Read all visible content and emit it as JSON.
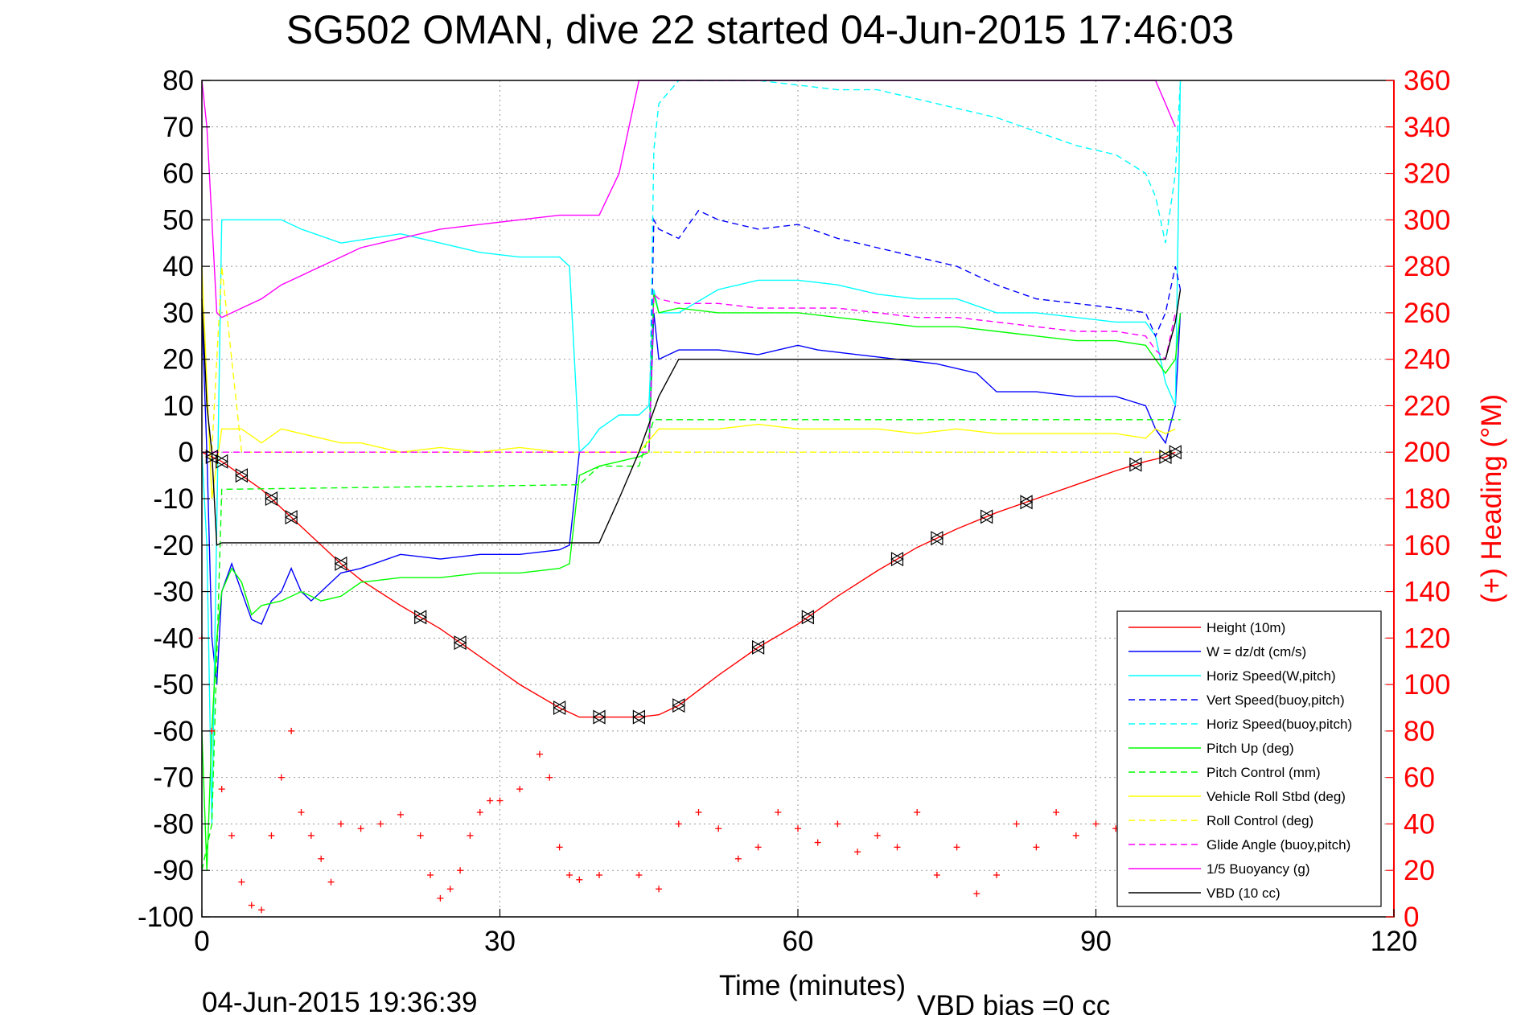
{
  "chart_data": {
    "type": "line",
    "title": "SG502 OMAN, dive 22 started 04-Jun-2015 17:46:03",
    "xlabel": "Time (minutes)",
    "ylabel_right": "(+) Heading (°M)",
    "footer_left": "04-Jun-2015 19:36:39",
    "footer_right": "VBD bias =0 cc",
    "xlim": [
      0,
      120
    ],
    "ylim": [
      -100,
      80
    ],
    "ylim_right": [
      0,
      360
    ],
    "xticks": [
      "0",
      "30",
      "60",
      "90",
      "120"
    ],
    "yticks_left": [
      "80",
      "70",
      "60",
      "50",
      "40",
      "30",
      "20",
      "10",
      "0",
      "-10",
      "-20",
      "-30",
      "-40",
      "-50",
      "-60",
      "-70",
      "-80",
      "-90",
      "-100"
    ],
    "yticks_right": [
      "360",
      "340",
      "320",
      "300",
      "280",
      "260",
      "240",
      "220",
      "200",
      "180",
      "160",
      "140",
      "120",
      "100",
      "80",
      "60",
      "40",
      "20",
      "0"
    ],
    "grid": true,
    "legend_position": "bottom-right",
    "colors": {
      "height": "#ff0000",
      "w": "#0000ff",
      "horiz_speed_w": "#00ffff",
      "vert_speed_buoy": "#0000ff",
      "horiz_speed_buoy": "#00ffff",
      "pitch_up": "#00ff00",
      "pitch_control": "#00ff00",
      "vehicle_roll": "#ffff00",
      "roll_control": "#ffff00",
      "glide_angle": "#ff00ff",
      "buoyancy": "#ff00ff",
      "vbd": "#000000",
      "heading": "#ff0000"
    },
    "series": [
      {
        "key": "height",
        "name": "Height (10m)",
        "style": "solid",
        "color": "#ff0000",
        "x": [
          0,
          1,
          2,
          4,
          6,
          8,
          10,
          12,
          14,
          16,
          20,
          24,
          28,
          32,
          36,
          38,
          40,
          42,
          44,
          46,
          48,
          52,
          56,
          60,
          64,
          68,
          72,
          76,
          80,
          84,
          88,
          92,
          95,
          97,
          98
        ],
        "y": [
          0,
          -1,
          -2,
          -5,
          -8,
          -12,
          -16,
          -20,
          -24,
          -27.5,
          -33,
          -38,
          -44,
          -50,
          -55,
          -57,
          -57,
          -57,
          -57,
          -56.5,
          -54.5,
          -48,
          -42,
          -37,
          -31,
          -25.5,
          -20.5,
          -16.5,
          -13,
          -10,
          -7,
          -4,
          -2,
          -1,
          0
        ]
      },
      {
        "key": "w",
        "name": "W = dz/dt (cm/s)",
        "style": "solid",
        "color": "#0000ff",
        "x": [
          0,
          0.5,
          1,
          1.5,
          2,
          3,
          4,
          5,
          6,
          7,
          8,
          9,
          10,
          11,
          12,
          13,
          14,
          16,
          20,
          24,
          28,
          32,
          36,
          37,
          38,
          39,
          40,
          42,
          44,
          45,
          45.5,
          46,
          48,
          52,
          56,
          60,
          62,
          66,
          70,
          74,
          78,
          80,
          84,
          88,
          92,
          95,
          96,
          97,
          98,
          98.5
        ],
        "y": [
          30,
          0,
          -40,
          -50,
          -30,
          -24,
          -30,
          -36,
          -37,
          -32,
          -30,
          -25,
          -30,
          -32,
          -30,
          -28,
          -26,
          -25,
          -22,
          -23,
          -22,
          -22,
          -21,
          -20,
          0,
          0,
          0,
          0,
          0,
          0,
          30,
          20,
          22,
          22,
          21,
          23,
          22,
          21,
          20,
          19,
          17,
          13,
          13,
          12,
          12,
          10,
          5,
          2,
          10,
          30
        ]
      },
      {
        "key": "horiz_speed_w",
        "name": "Horiz Speed(W,pitch)",
        "style": "solid",
        "color": "#00ffff",
        "x": [
          0,
          0.5,
          1,
          2,
          4,
          6,
          8,
          10,
          14,
          20,
          24,
          28,
          32,
          36,
          37,
          38,
          39,
          40,
          42,
          44,
          45,
          45.5,
          46,
          48,
          52,
          56,
          60,
          64,
          68,
          72,
          76,
          80,
          84,
          88,
          92,
          95,
          96,
          97,
          98,
          98.5
        ],
        "y": [
          0,
          -20,
          -80,
          50,
          50,
          50,
          50,
          48,
          45,
          47,
          45,
          43,
          42,
          42,
          40,
          0,
          2,
          5,
          8,
          8,
          10,
          35,
          30,
          30,
          35,
          37,
          37,
          36,
          34,
          33,
          33,
          30,
          30,
          29,
          28,
          28,
          25,
          15,
          10,
          80
        ]
      },
      {
        "key": "vert_speed_buoy",
        "name": "Vert Speed(buoy,pitch)",
        "style": "dashed",
        "color": "#0000ff",
        "x": [
          44,
          45,
          45.5,
          46,
          48,
          50,
          52,
          56,
          60,
          64,
          68,
          72,
          76,
          80,
          84,
          88,
          92,
          95,
          96,
          97,
          98,
          98.5
        ],
        "y": [
          0,
          0,
          50,
          48,
          46,
          52,
          50,
          48,
          49,
          46,
          44,
          42,
          40,
          36,
          33,
          32,
          31,
          30,
          25,
          30,
          40,
          35
        ]
      },
      {
        "key": "horiz_speed_buoy",
        "name": "Horiz Speed(buoy,pitch)",
        "style": "dashed",
        "color": "#00ffff",
        "x": [
          44,
          45,
          45.5,
          46,
          48,
          52,
          56,
          60,
          64,
          68,
          72,
          76,
          80,
          84,
          88,
          92,
          95,
          96,
          97,
          98,
          98.5
        ],
        "y": [
          0,
          0,
          65,
          75,
          80,
          80,
          80,
          79,
          78,
          78,
          76,
          74,
          72,
          69,
          66,
          64,
          60,
          55,
          45,
          60,
          80
        ]
      },
      {
        "key": "pitch_up",
        "name": "Pitch Up (deg)",
        "style": "solid",
        "color": "#00ff00",
        "x": [
          0,
          0.5,
          1,
          1.5,
          2,
          3,
          4,
          5,
          6,
          8,
          10,
          12,
          14,
          16,
          20,
          24,
          28,
          32,
          36,
          37,
          38,
          40,
          42,
          44,
          45,
          45.5,
          46,
          48,
          52,
          56,
          60,
          64,
          68,
          72,
          76,
          80,
          84,
          88,
          92,
          95,
          96,
          97,
          98,
          98.5
        ],
        "y": [
          -60,
          -90,
          -60,
          -40,
          -30,
          -25,
          -28,
          -35,
          -33,
          -32,
          -30,
          -32,
          -31,
          -28,
          -27,
          -27,
          -26,
          -26,
          -25,
          -24,
          -5,
          -3,
          -2,
          -1,
          0,
          34,
          30,
          31,
          30,
          30,
          30,
          29,
          28,
          27,
          27,
          26,
          25,
          24,
          24,
          23,
          20,
          17,
          20,
          30
        ]
      },
      {
        "key": "pitch_control",
        "name": "Pitch Control (mm)",
        "style": "dashed",
        "color": "#00ff00",
        "x": [
          0,
          1,
          2,
          38,
          40,
          44,
          45.5,
          90,
          98,
          98.5
        ],
        "y": [
          -90,
          -80,
          -8,
          -7,
          -3,
          -3,
          7,
          7,
          7,
          7
        ]
      },
      {
        "key": "vehicle_roll",
        "name": "Vehicle Roll Stbd (deg)",
        "style": "solid",
        "color": "#ffff00",
        "x": [
          0,
          1,
          2,
          4,
          6,
          8,
          10,
          12,
          14,
          16,
          20,
          24,
          28,
          32,
          36,
          38,
          40,
          42,
          44,
          46,
          48,
          52,
          56,
          60,
          64,
          68,
          72,
          76,
          80,
          84,
          88,
          92,
          95,
          96,
          97,
          98
        ],
        "y": [
          40,
          -10,
          5,
          5,
          2,
          5,
          4,
          3,
          2,
          2,
          0,
          1,
          0,
          1,
          0,
          0,
          0,
          0,
          0,
          5,
          5,
          5,
          6,
          5,
          5,
          5,
          4,
          5,
          4,
          4,
          4,
          4,
          3,
          5,
          4,
          5
        ]
      },
      {
        "key": "roll_control",
        "name": "Roll Control (deg)",
        "style": "dashed",
        "color": "#ffff00",
        "x": [
          0,
          1,
          2,
          4,
          6,
          8,
          10,
          14,
          20,
          28,
          36,
          38,
          40,
          44,
          46,
          56,
          70,
          80,
          90,
          98
        ],
        "y": [
          0,
          0,
          40,
          0,
          0,
          0,
          0,
          0,
          0,
          0,
          0,
          0,
          0,
          0,
          0,
          0,
          0,
          0,
          0,
          0
        ]
      },
      {
        "key": "glide_angle",
        "name": "Glide Angle (buoy,pitch)",
        "style": "dashed",
        "color": "#ff00ff",
        "x": [
          0,
          44,
          45,
          45.5,
          46,
          48,
          52,
          56,
          60,
          64,
          68,
          72,
          76,
          80,
          84,
          88,
          92,
          95,
          96,
          97,
          98
        ],
        "y": [
          0,
          0,
          0,
          34,
          33,
          32,
          32,
          31,
          31,
          31,
          30,
          29,
          29,
          28,
          27,
          26,
          26,
          25,
          22,
          20,
          30
        ]
      },
      {
        "key": "buoyancy",
        "name": "1/5 Buoyancy (g)",
        "style": "solid",
        "color": "#ff00ff",
        "x": [
          0,
          0.5,
          1,
          1.5,
          2,
          4,
          6,
          8,
          10,
          12,
          14,
          16,
          20,
          24,
          28,
          32,
          36,
          38,
          40,
          42,
          43,
          44,
          96,
          97,
          98
        ],
        "y": [
          80,
          70,
          50,
          30,
          29,
          31,
          33,
          36,
          38,
          40,
          42,
          44,
          46,
          48,
          49,
          50,
          51,
          51,
          51,
          60,
          70,
          80,
          80,
          75,
          70
        ]
      },
      {
        "key": "vbd",
        "name": "VBD (10 cc)",
        "style": "solid",
        "color": "#000000",
        "x": [
          0,
          0.5,
          1,
          1.5,
          2,
          38,
          40,
          42,
          44,
          46,
          48,
          96,
          97,
          98,
          98.5
        ],
        "y": [
          33,
          10,
          0,
          -20,
          -19.5,
          -19.5,
          -19.5,
          -10,
          0,
          12,
          20,
          20,
          20,
          28,
          35
        ]
      },
      {
        "key": "heading",
        "name": "",
        "style": "markers",
        "color": "#ff0000",
        "axis": "right",
        "x": [
          0,
          1,
          2,
          3,
          4,
          5,
          6,
          7,
          8,
          9,
          10,
          11,
          12,
          13,
          14,
          16,
          18,
          20,
          22,
          23,
          24,
          25,
          26,
          27,
          28,
          29,
          30,
          32,
          34,
          35,
          36,
          37,
          38,
          40,
          44,
          46,
          48,
          50,
          52,
          54,
          56,
          58,
          60,
          62,
          64,
          66,
          68,
          70,
          72,
          74,
          76,
          78,
          80,
          82,
          84,
          86,
          88,
          90,
          92,
          93
        ],
        "y": [
          120,
          80,
          55,
          35,
          15,
          5,
          3,
          35,
          60,
          80,
          45,
          35,
          25,
          15,
          40,
          38,
          40,
          44,
          35,
          18,
          8,
          12,
          20,
          35,
          45,
          50,
          50,
          55,
          70,
          60,
          30,
          18,
          16,
          18,
          18,
          12,
          40,
          45,
          38,
          25,
          30,
          45,
          38,
          32,
          40,
          28,
          35,
          30,
          45,
          18,
          30,
          10,
          18,
          40,
          30,
          45,
          35,
          40,
          38,
          28
        ]
      }
    ],
    "annotations": [
      {
        "key": "ascend_markers",
        "style": "triangle-markers",
        "color": "#000000"
      }
    ]
  },
  "legend": {
    "entries": [
      "Height (10m)",
      "W = dz/dt (cm/s)",
      "Horiz Speed(W,pitch)",
      "Vert Speed(buoy,pitch)",
      "Horiz Speed(buoy,pitch)",
      "Pitch Up (deg)",
      "Pitch Control (mm)",
      "Vehicle Roll Stbd (deg)",
      "Roll Control (deg)",
      "Glide Angle (buoy,pitch)",
      "1/5 Buoyancy (g)",
      "VBD (10 cc)"
    ]
  }
}
